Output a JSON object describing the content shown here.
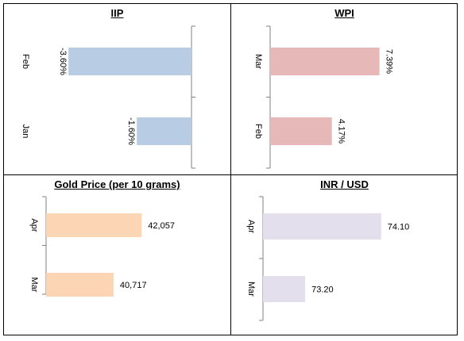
{
  "chart_data": [
    {
      "type": "bar",
      "orientation": "horizontal",
      "title": "IIP",
      "categories": [
        "Feb",
        "Jan"
      ],
      "values": [
        -3.6,
        -1.6
      ],
      "value_labels": [
        "-3.60%",
        "-1.60%"
      ],
      "xlim": [
        -4.0,
        0
      ],
      "color": "#b8cce4",
      "grid": false,
      "legend": "none"
    },
    {
      "type": "bar",
      "orientation": "horizontal",
      "title": "WPI",
      "categories": [
        "Mar",
        "Feb"
      ],
      "values": [
        7.39,
        4.17
      ],
      "value_labels": [
        "7.39%",
        "4.17%"
      ],
      "xlim": [
        0,
        8
      ],
      "color": "#e6b9b8",
      "grid": false,
      "legend": "none"
    },
    {
      "type": "bar",
      "orientation": "horizontal",
      "title": "Gold Price (per 10 grams)",
      "categories": [
        "Apr",
        "Mar"
      ],
      "values": [
        42057,
        40717
      ],
      "value_labels": [
        "42,057",
        "40,717"
      ],
      "xlim": [
        37500,
        42500
      ],
      "color": "#fcd5b5",
      "grid": false,
      "legend": "none"
    },
    {
      "type": "bar",
      "orientation": "horizontal",
      "title": "INR / USD",
      "categories": [
        "Apr",
        "Mar"
      ],
      "values": [
        74.1,
        73.2
      ],
      "value_labels": [
        "74.10",
        "73.20"
      ],
      "xlim": [
        72.7,
        74.3
      ],
      "color": "#e4dfec",
      "grid": false,
      "legend": "none"
    }
  ]
}
